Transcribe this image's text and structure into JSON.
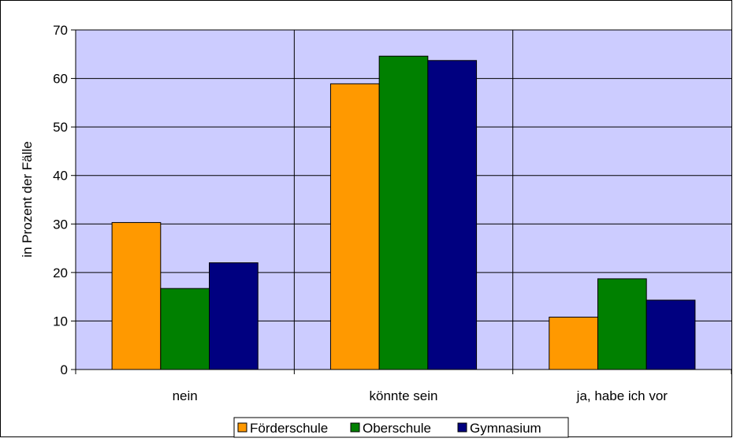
{
  "chart_data": {
    "type": "bar",
    "title": "",
    "xlabel": "",
    "ylabel": "in Prozent der Fälle",
    "ylim": [
      0,
      70
    ],
    "yticks": [
      0,
      10,
      20,
      30,
      40,
      50,
      60,
      70
    ],
    "categories": [
      "nein",
      "könnte sein",
      "ja, habe ich vor"
    ],
    "series": [
      {
        "name": "Förderschule",
        "color": "#ff9900",
        "values": [
          30.3,
          58.9,
          10.8
        ]
      },
      {
        "name": "Oberschule",
        "color": "#008000",
        "values": [
          16.7,
          64.6,
          18.7
        ]
      },
      {
        "name": "Gymnasium",
        "color": "#000080",
        "values": [
          22.0,
          63.7,
          14.3
        ]
      }
    ],
    "plot_background": "#ccccff",
    "grid": true,
    "legend_position": "bottom"
  }
}
